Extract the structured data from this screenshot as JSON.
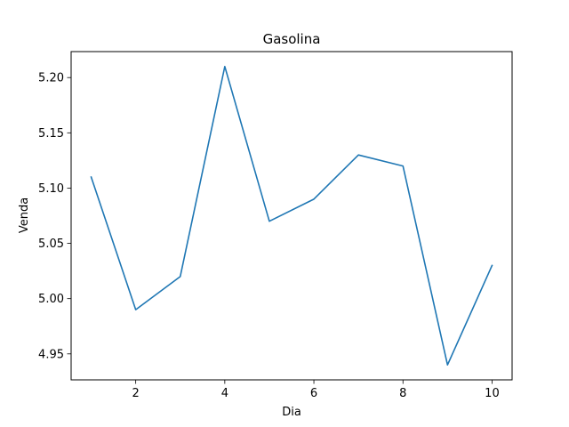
{
  "chart_data": {
    "type": "line",
    "title": "Gasolina",
    "xlabel": "Dia",
    "ylabel": "Venda",
    "xlim": [
      0.55,
      10.45
    ],
    "ylim": [
      4.9265,
      5.2235
    ],
    "xticks": [
      2,
      4,
      6,
      8,
      10
    ],
    "xtick_labels": [
      "2",
      "4",
      "6",
      "8",
      "10"
    ],
    "yticks": [
      4.95,
      5.0,
      5.05,
      5.1,
      5.15,
      5.2
    ],
    "ytick_labels": [
      "4.95",
      "5.00",
      "5.05",
      "5.10",
      "5.15",
      "5.20"
    ],
    "grid": false,
    "series": [
      {
        "color": "#1f77b4",
        "x": [
          1,
          2,
          3,
          4,
          5,
          6,
          7,
          8,
          9,
          10
        ],
        "y": [
          5.11,
          4.99,
          5.02,
          5.21,
          5.07,
          5.09,
          5.13,
          5.12,
          4.94,
          5.03
        ]
      }
    ]
  }
}
